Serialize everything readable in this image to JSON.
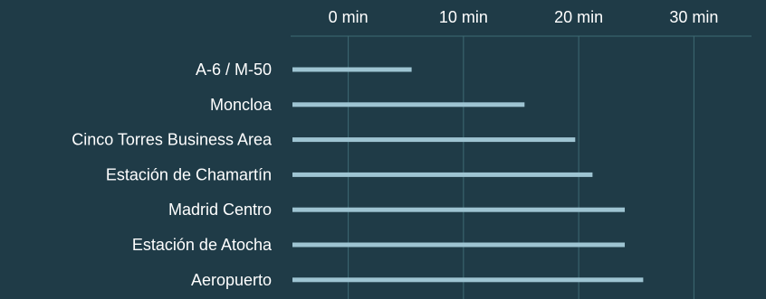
{
  "chart_data": {
    "type": "bar",
    "orientation": "horizontal",
    "title": "",
    "xlabel": "",
    "ylabel": "",
    "categories": [
      "A-6 / M-50",
      "Moncloa",
      "Cinco Torres Business Area",
      "Estación de Chamartín",
      "Madrid Centro",
      "Estación de Atocha",
      "Aeropuerto"
    ],
    "values": [
      5.5,
      15.3,
      19.7,
      21.2,
      24.0,
      24.0,
      25.6
    ],
    "x_ticks": [
      {
        "value": 0,
        "label": "0 min"
      },
      {
        "value": 10,
        "label": "10 min"
      },
      {
        "value": 20,
        "label": "20 min"
      },
      {
        "value": 30,
        "label": "30 min"
      }
    ],
    "xlim": [
      -5,
      35
    ],
    "x_axis_position": "top",
    "grid": true,
    "legend": "none",
    "colors": {
      "background": "#1f3b47",
      "bar": "#9ec4d2",
      "grid": "#3e6b73",
      "text": "#ffffff"
    }
  }
}
